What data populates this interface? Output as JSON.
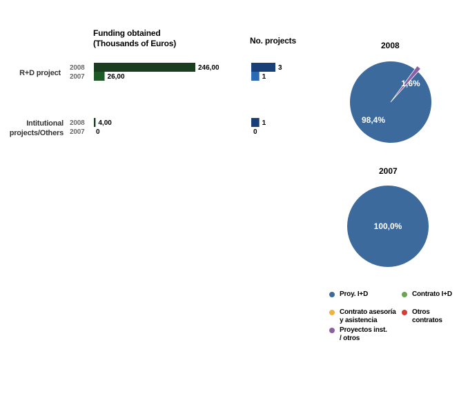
{
  "headers": {
    "funding": [
      "Funding obtained",
      "(Thousands of Euros)"
    ],
    "projects": "No. projects"
  },
  "colors": {
    "funding_2008": "#1b3d1f",
    "funding_2007": "#1e5a26",
    "projects_2008": "#183f78",
    "projects_2007": "#2c6bb3",
    "pie_proy": "#3c6a9c",
    "pie_contrato": "#6aa555",
    "pie_asesoria": "#f0b23e",
    "pie_otros": "#d23d35",
    "pie_inst": "#8b5fa3"
  },
  "chart_data": [
    {
      "type": "bar",
      "orientation": "horizontal",
      "title": "Funding obtained (Thousands of Euros)",
      "categories": [
        "R+D project",
        "Intitutional projects/Others"
      ],
      "series": [
        {
          "name": "2008",
          "values": [
            246.0,
            4.0
          ],
          "labels": [
            "246,00",
            "4,00"
          ]
        },
        {
          "name": "2007",
          "values": [
            26.0,
            0
          ],
          "labels": [
            "26,00",
            "0"
          ]
        }
      ]
    },
    {
      "type": "bar",
      "orientation": "horizontal",
      "title": "No. projects",
      "categories": [
        "R+D project",
        "Intitutional projects/Others"
      ],
      "series": [
        {
          "name": "2008",
          "values": [
            3,
            1
          ],
          "labels": [
            "3",
            "1"
          ]
        },
        {
          "name": "2007",
          "values": [
            1,
            0
          ],
          "labels": [
            "1",
            "0"
          ]
        }
      ]
    },
    {
      "type": "pie",
      "title": "2008",
      "slices": [
        {
          "name": "Proy. I+D",
          "value": 98.4,
          "label": "98,4%"
        },
        {
          "name": "Proyectos inst. / otros",
          "value": 1.6,
          "label": "1,6%"
        }
      ]
    },
    {
      "type": "pie",
      "title": "2007",
      "slices": [
        {
          "name": "Proy. I+D",
          "value": 100.0,
          "label": "100,0%"
        }
      ]
    }
  ],
  "rows": [
    {
      "label": [
        "R+D project"
      ],
      "years": [
        "2008",
        "2007"
      ]
    },
    {
      "label": [
        "Intitutional",
        "projects/Others"
      ],
      "years": [
        "2008",
        "2007"
      ]
    }
  ],
  "legend": [
    {
      "lines": [
        "Proy. I+D"
      ],
      "color": "#3c6a9c"
    },
    {
      "lines": [
        "Contrato I+D"
      ],
      "color": "#6aa555"
    },
    {
      "lines": [
        "Contrato asesoría",
        "y asistencia"
      ],
      "color": "#f0b23e"
    },
    {
      "lines": [
        "Otros",
        "contratos"
      ],
      "color": "#d23d35"
    },
    {
      "lines": [
        "Proyectos inst.",
        "/ otros"
      ],
      "color": "#8b5fa3"
    }
  ]
}
